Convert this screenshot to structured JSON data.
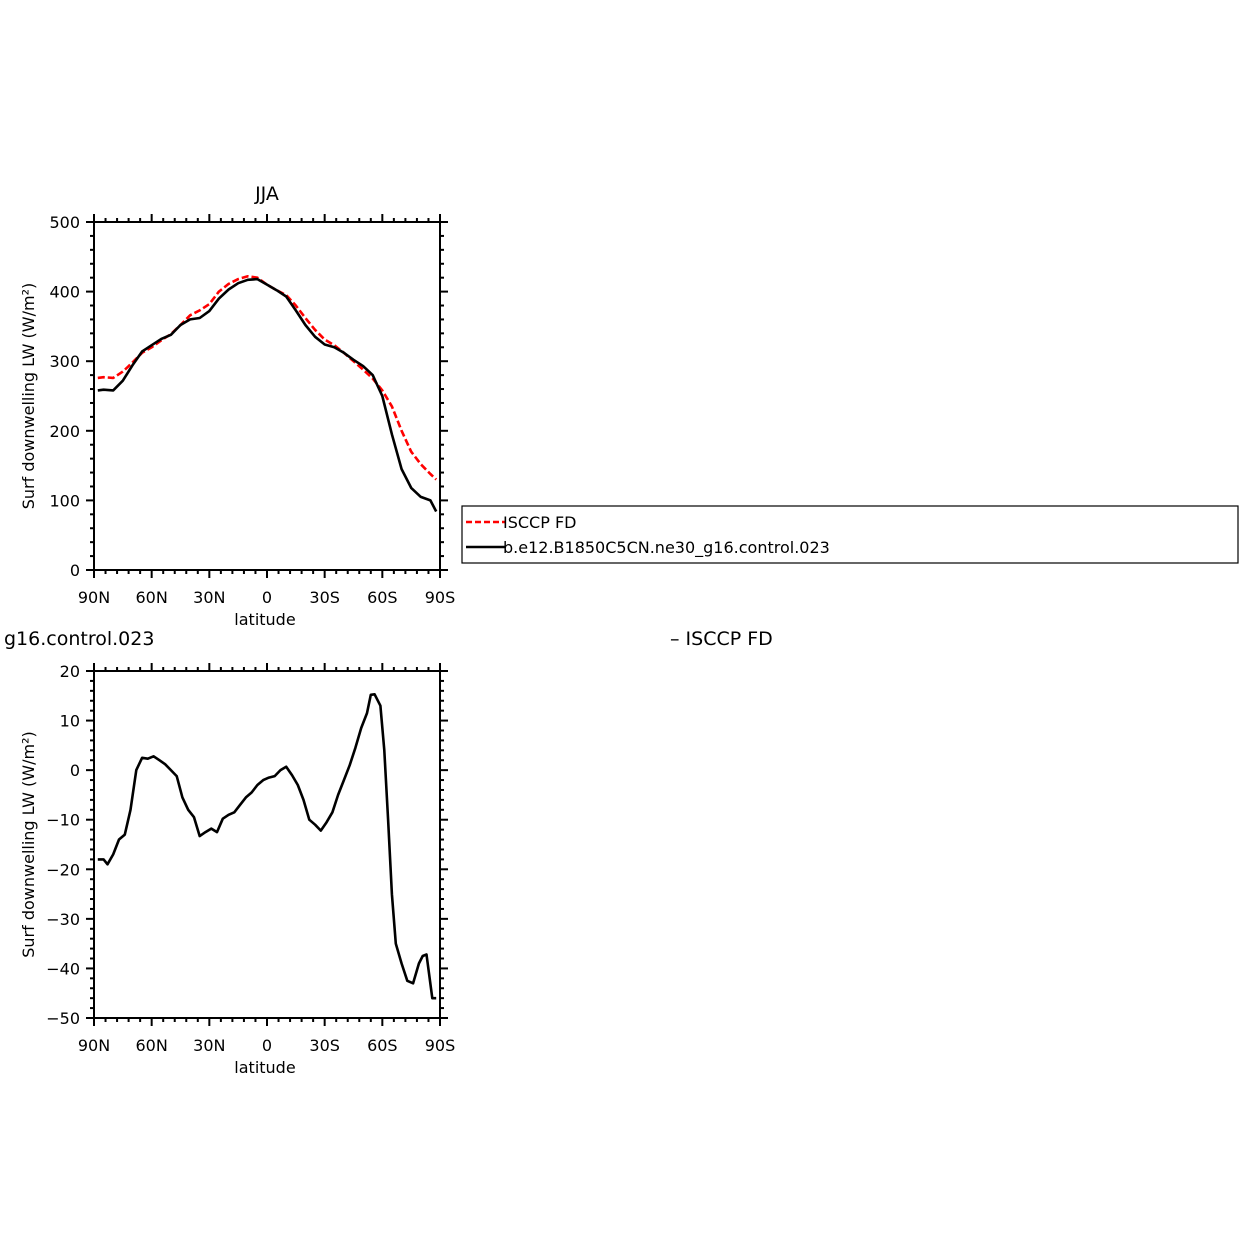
{
  "chart_data": [
    {
      "type": "line",
      "title": "JJA",
      "xlabel": "latitude",
      "ylabel": "Surf downwelling LW (W/m²)",
      "xlim": [
        -90,
        90
      ],
      "ylim": [
        0,
        500
      ],
      "xticks": [
        {
          "value": -90,
          "label": "90N"
        },
        {
          "value": -60,
          "label": "60N"
        },
        {
          "value": -30,
          "label": "30N"
        },
        {
          "value": 0,
          "label": "0"
        },
        {
          "value": 30,
          "label": "30S"
        },
        {
          "value": 60,
          "label": "60S"
        },
        {
          "value": 90,
          "label": "90S"
        }
      ],
      "yticks": [
        0,
        100,
        200,
        300,
        400,
        500
      ],
      "grid": false,
      "legend": "right",
      "series": [
        {
          "name": "ISCCP FD",
          "color": "#ff0000",
          "dash": "dashed",
          "x": [
            -88,
            -85,
            -80,
            -75,
            -70,
            -65,
            -60,
            -55,
            -50,
            -45,
            -40,
            -35,
            -30,
            -25,
            -20,
            -15,
            -10,
            -5,
            0,
            5,
            10,
            15,
            20,
            25,
            30,
            35,
            40,
            45,
            50,
            55,
            60,
            65,
            70,
            75,
            80,
            85,
            88
          ],
          "y": [
            276,
            277,
            276,
            285,
            298,
            312,
            320,
            330,
            339,
            352,
            366,
            373,
            382,
            400,
            411,
            418,
            422,
            420,
            410,
            402,
            395,
            380,
            362,
            345,
            331,
            323,
            312,
            300,
            288,
            275,
            258,
            235,
            200,
            170,
            152,
            138,
            130
          ]
        },
        {
          "name": "b.e12.B1850C5CN.ne30_g16.control.023",
          "color": "#000000",
          "dash": "solid",
          "x": [
            -88,
            -85,
            -80,
            -75,
            -70,
            -65,
            -60,
            -55,
            -50,
            -45,
            -40,
            -35,
            -30,
            -25,
            -20,
            -15,
            -10,
            -5,
            0,
            5,
            10,
            15,
            20,
            25,
            30,
            35,
            40,
            45,
            50,
            55,
            60,
            65,
            70,
            75,
            80,
            85,
            88
          ],
          "y": [
            258,
            259,
            258,
            272,
            294,
            314,
            323,
            332,
            338,
            352,
            360,
            362,
            372,
            390,
            403,
            412,
            417,
            418,
            410,
            402,
            393,
            373,
            352,
            335,
            324,
            320,
            312,
            302,
            293,
            280,
            250,
            195,
            145,
            118,
            105,
            100,
            84
          ]
        }
      ]
    },
    {
      "type": "line",
      "title": "",
      "xlabel": "latitude",
      "ylabel": "Surf downwelling LW (W/m²)",
      "xlim": [
        -90,
        90
      ],
      "ylim": [
        -50,
        20
      ],
      "xticks": [
        {
          "value": -90,
          "label": "90N"
        },
        {
          "value": -60,
          "label": "60N"
        },
        {
          "value": -30,
          "label": "30N"
        },
        {
          "value": 0,
          "label": "0"
        },
        {
          "value": 30,
          "label": "30S"
        },
        {
          "value": 60,
          "label": "60S"
        },
        {
          "value": 90,
          "label": "90S"
        }
      ],
      "yticks": [
        -50,
        -40,
        -30,
        -20,
        -10,
        0,
        10,
        20
      ],
      "grid": false,
      "legend": "none",
      "header_left": "g16.control.023",
      "header_right": "– ISCCP FD",
      "series": [
        {
          "color": "#000000",
          "dash": "solid",
          "x": [
            -88,
            -85,
            -83,
            -80,
            -77,
            -74,
            -71,
            -68,
            -65,
            -62,
            -59,
            -56,
            -53,
            -50,
            -47,
            -44,
            -41,
            -38,
            -35,
            -32,
            -29,
            -26,
            -23,
            -20,
            -17,
            -14,
            -11,
            -8,
            -5,
            -2,
            1,
            4,
            7,
            10,
            13,
            16,
            19,
            22,
            25,
            28,
            31,
            34,
            37,
            40,
            43,
            46,
            49,
            52,
            54,
            56,
            59,
            61,
            63,
            65,
            67,
            70,
            73,
            76,
            79,
            81,
            83,
            86,
            88
          ],
          "y": [
            -18,
            -18,
            -19,
            -17,
            -14,
            -13,
            -8,
            0,
            2.5,
            2.3,
            2.8,
            2,
            1.2,
            0,
            -1.2,
            -5.5,
            -8,
            -9.5,
            -13.3,
            -12.5,
            -11.8,
            -12.5,
            -9.8,
            -9,
            -8.5,
            -7,
            -5.5,
            -4.5,
            -3,
            -2,
            -1.5,
            -1.2,
            0,
            0.7,
            -1,
            -3,
            -6,
            -10,
            -11,
            -12.2,
            -10.5,
            -8.5,
            -5,
            -2,
            1,
            4.5,
            8.5,
            11.5,
            15.2,
            15.3,
            13,
            4,
            -10,
            -25,
            -35,
            -39,
            -42.5,
            -43,
            -39,
            -37.5,
            -37.2,
            -46,
            -46
          ]
        }
      ]
    }
  ]
}
